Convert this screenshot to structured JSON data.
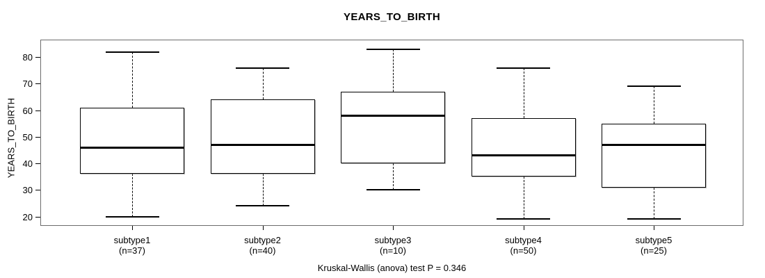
{
  "chart_data": {
    "type": "boxplot",
    "title": "YEARS_TO_BIRTH",
    "ylabel": "YEARS_TO_BIRTH",
    "caption": "Kruskal-Wallis (anova) test P = 0.346",
    "yticks": [
      20,
      30,
      40,
      50,
      60,
      70,
      80
    ],
    "ylim": [
      16.5,
      86.6
    ],
    "grid": false,
    "groups": [
      {
        "label": "subtype1",
        "sublabel": "(n=37)",
        "n": 37,
        "min": 20,
        "q1": 36,
        "median": 46,
        "q3": 61,
        "max": 82
      },
      {
        "label": "subtype2",
        "sublabel": "(n=40)",
        "n": 40,
        "min": 24,
        "q1": 36,
        "median": 47,
        "q3": 64,
        "max": 76
      },
      {
        "label": "subtype3",
        "sublabel": "(n=10)",
        "n": 10,
        "min": 30,
        "q1": 40,
        "median": 58,
        "q3": 67,
        "max": 83
      },
      {
        "label": "subtype4",
        "sublabel": "(n=50)",
        "n": 50,
        "min": 19,
        "q1": 35,
        "median": 43,
        "q3": 57,
        "max": 76
      },
      {
        "label": "subtype5",
        "sublabel": "(n=25)",
        "n": 25,
        "min": 19,
        "q1": 31,
        "median": 47,
        "q3": 55,
        "max": 69
      }
    ],
    "colors": {
      "box_border": "#000000",
      "median": "#000000",
      "whisker": "#000000",
      "frame": "#6b6b6b",
      "background": "#ffffff",
      "text": "#000000"
    }
  }
}
